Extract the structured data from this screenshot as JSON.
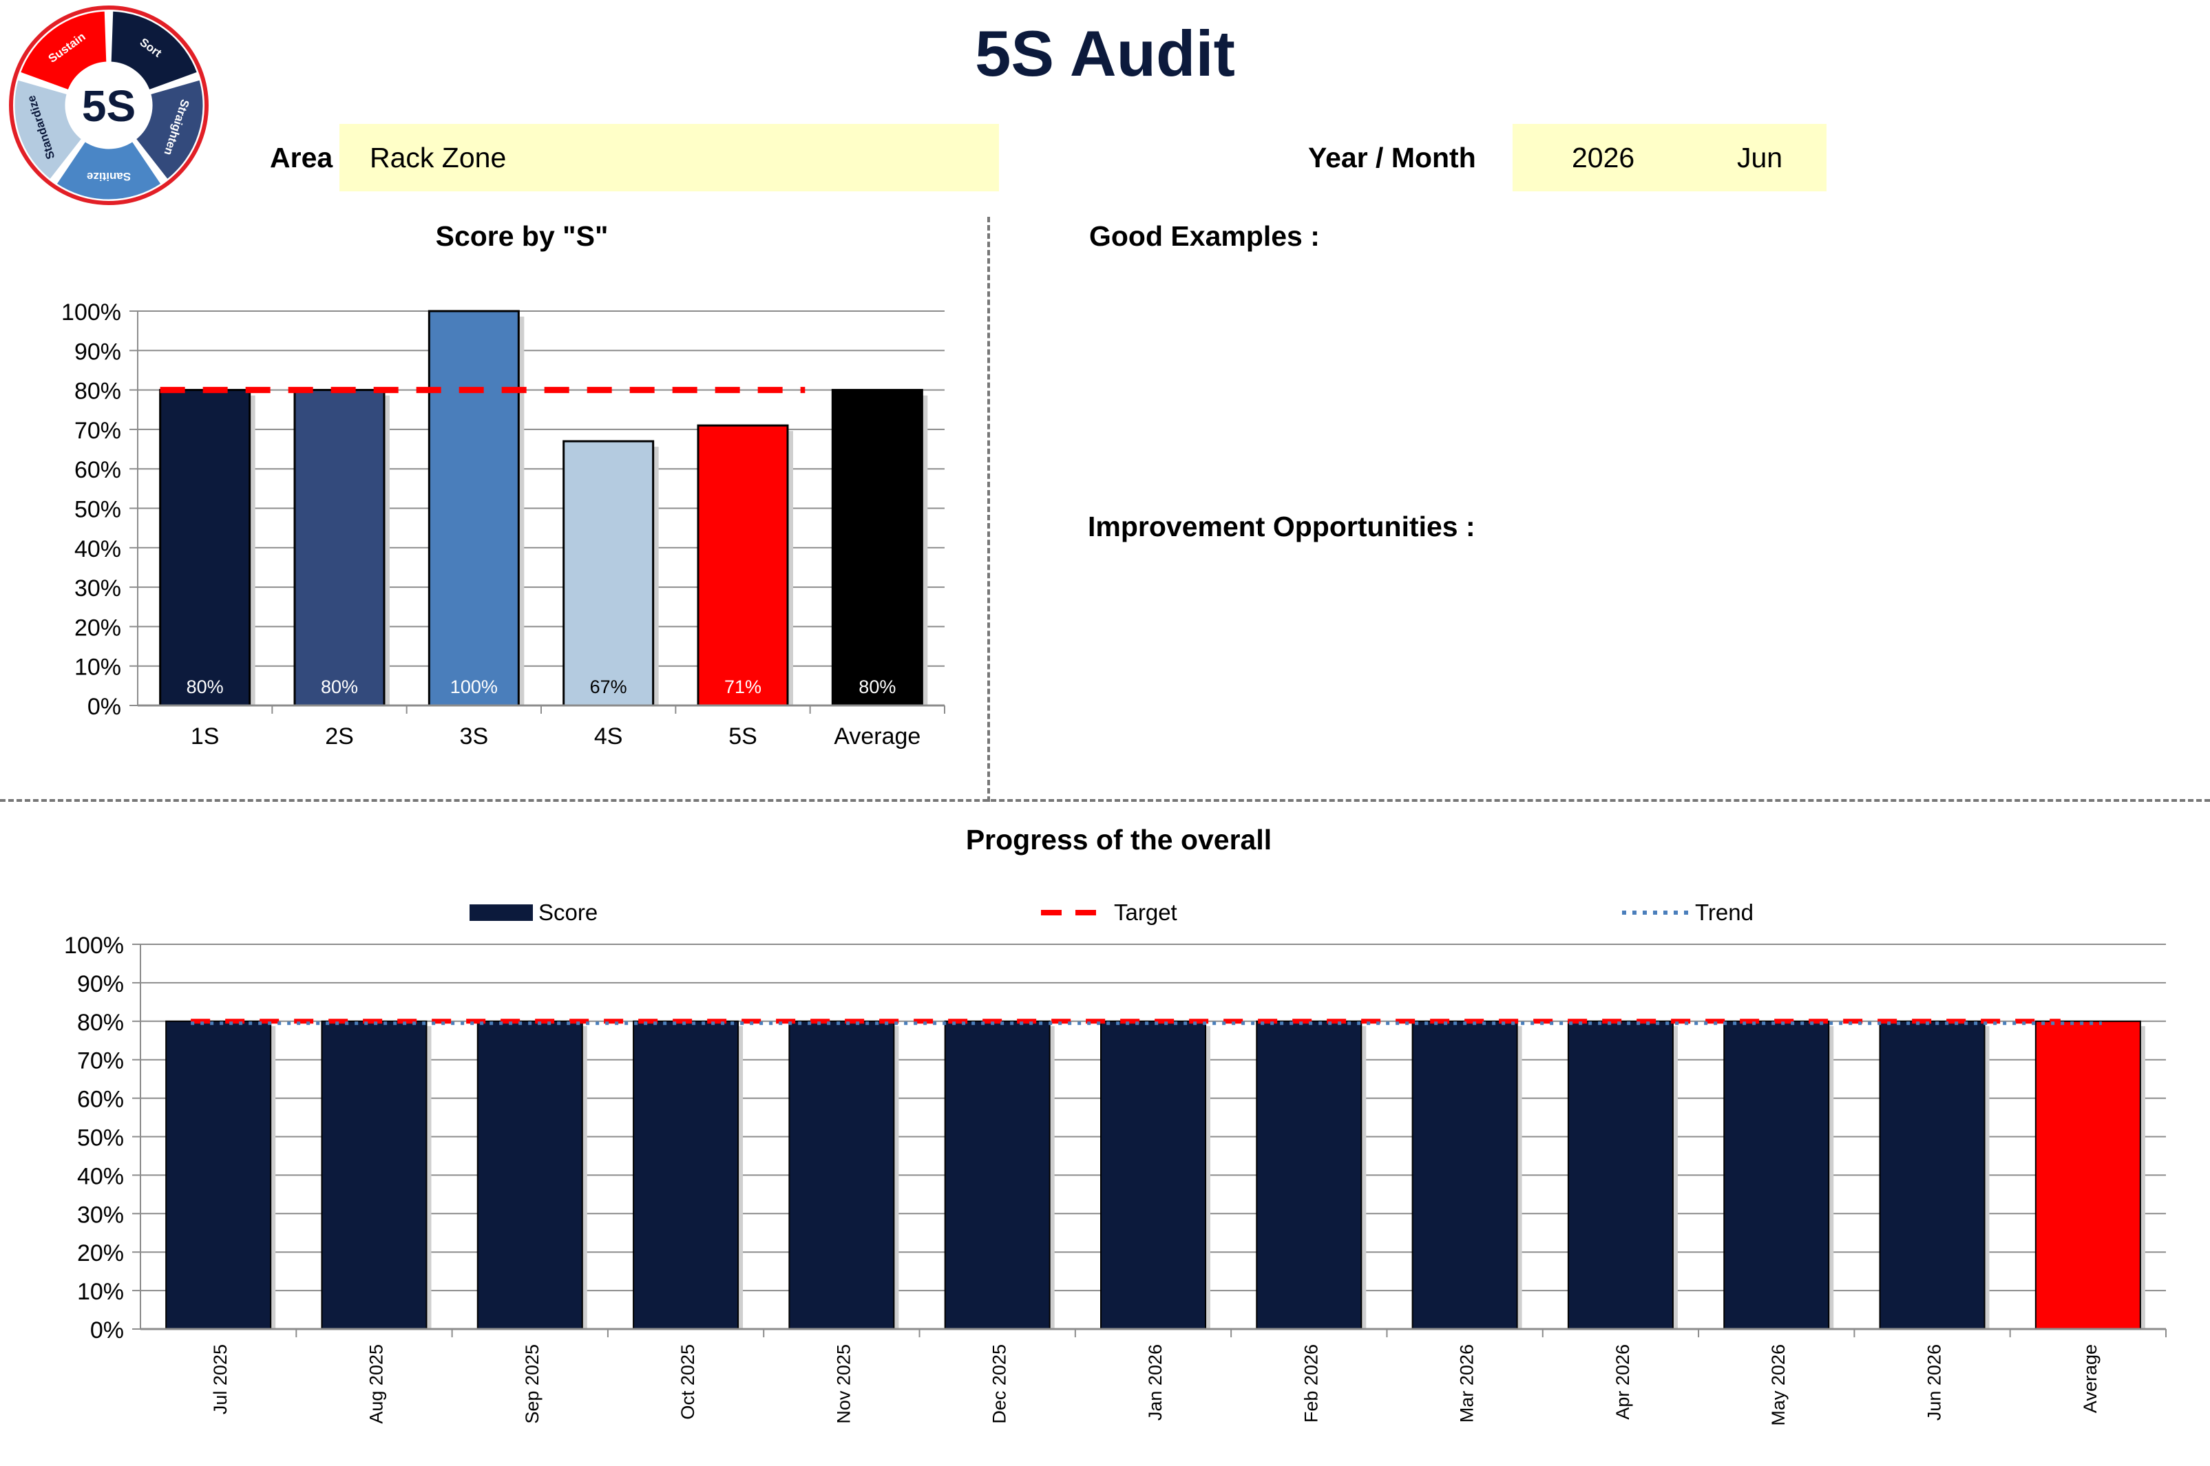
{
  "title": "5S Audit",
  "logo": {
    "center_text": "5S",
    "segments": [
      "Sort",
      "Straighten",
      "Sanitize",
      "Standardize",
      "Sustain"
    ],
    "colors": [
      "#0c1a3c",
      "#334a7c",
      "#4a86c6",
      "#b4cbe0",
      "#ff0000"
    ]
  },
  "area": {
    "label": "Area",
    "value": "Rack Zone"
  },
  "period": {
    "label": "Year / Month",
    "year": "2026",
    "month": "Jun"
  },
  "good_examples_label": "Good Examples :",
  "improvement_label": "Improvement Opportunities :",
  "colors": {
    "navy": "#0c1a3c",
    "target_red": "#ff0000",
    "trend_blue": "#4a7ebb",
    "field_bg": "#ffffc8",
    "grid": "#888888"
  },
  "chart_data": [
    {
      "type": "bar",
      "title": "Score by \"S\"",
      "categories": [
        "1S",
        "2S",
        "3S",
        "4S",
        "5S",
        "Average"
      ],
      "values": [
        0.8,
        0.8,
        1.0,
        0.67,
        0.71,
        0.8
      ],
      "data_labels": [
        "80%",
        "80%",
        "100%",
        "67%",
        "71%",
        "80%"
      ],
      "bar_colors": [
        "#0c1a3c",
        "#334a7c",
        "#4a7ebb",
        "#b4cbe0",
        "#ff0000",
        "#000000"
      ],
      "label_colors": [
        "#ffffff",
        "#ffffff",
        "#ffffff",
        "#000000",
        "#ffffff",
        "#ffffff"
      ],
      "target": 0.8,
      "ylim": [
        0,
        1
      ],
      "yticks": [
        "0%",
        "10%",
        "20%",
        "30%",
        "40%",
        "50%",
        "60%",
        "70%",
        "80%",
        "90%",
        "100%"
      ],
      "grid": true
    },
    {
      "type": "bar",
      "title": "Progress of the overall",
      "categories": [
        "Jul 2025",
        "Aug 2025",
        "Sep 2025",
        "Oct 2025",
        "Nov 2025",
        "Dec 2025",
        "Jan 2026",
        "Feb 2026",
        "Mar 2026",
        "Apr 2026",
        "May 2026",
        "Jun 2026",
        "Average"
      ],
      "series": [
        {
          "name": "Score",
          "values": [
            0.8,
            0.8,
            0.8,
            0.8,
            0.8,
            0.8,
            0.8,
            0.8,
            0.8,
            0.8,
            0.8,
            0.8,
            0.8
          ]
        },
        {
          "name": "Target",
          "values": [
            0.8,
            0.8,
            0.8,
            0.8,
            0.8,
            0.8,
            0.8,
            0.8,
            0.8,
            0.8,
            0.8,
            0.8,
            0.8
          ]
        },
        {
          "name": "Trend",
          "values": [
            0.8,
            0.8,
            0.8,
            0.8,
            0.8,
            0.8,
            0.8,
            0.8,
            0.8,
            0.8,
            0.8,
            0.8,
            0.8
          ]
        }
      ],
      "average_bar_color": "#ff0000",
      "ylim": [
        0,
        1
      ],
      "yticks": [
        "0%",
        "10%",
        "20%",
        "30%",
        "40%",
        "50%",
        "60%",
        "70%",
        "80%",
        "90%",
        "100%"
      ],
      "legend": "top",
      "grid": true
    }
  ]
}
